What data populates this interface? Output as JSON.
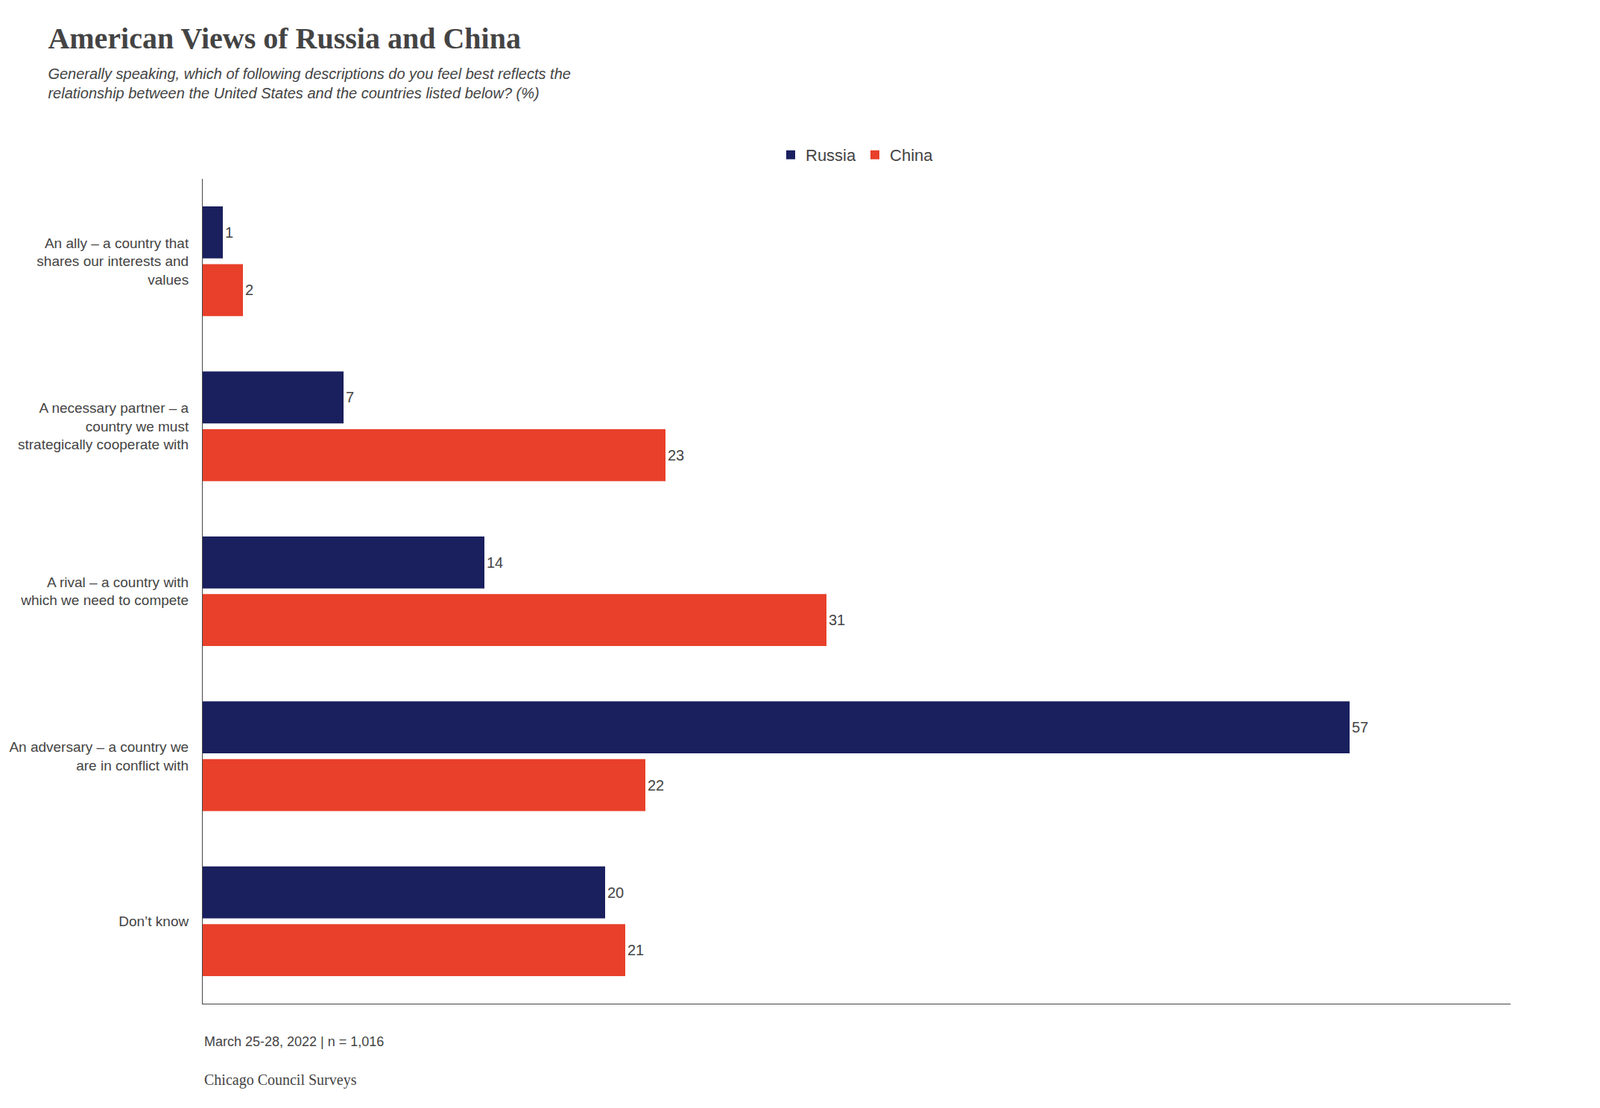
{
  "chart_data": {
    "type": "bar",
    "orientation": "horizontal",
    "title": "American Views of Russia and China",
    "subtitle": "Generally speaking, which of following descriptions do you feel best reflects the\nrelationship between the United States and the countries listed below? (%)",
    "annotations": [
      "March 25-28, 2022 | n = 1,016",
      "Chicago Council Surveys"
    ],
    "categories": [
      "An ally – a country that\nshares our interests and\nvalues",
      "A necessary partner – a\ncountry we must\nstrategically cooperate with",
      "A rival – a country with\nwhich we need to compete",
      "An adversary – a country we\nare in conflict with",
      "Don’t know"
    ],
    "series": [
      {
        "name": "Russia",
        "color": "#1a1f5e",
        "values": [
          1,
          7,
          14,
          57,
          20
        ]
      },
      {
        "name": "China",
        "color": "#e8402a",
        "values": [
          2,
          23,
          31,
          22,
          21
        ]
      }
    ],
    "xlim": [
      0,
      65
    ],
    "grid": false,
    "legend": "top",
    "data_labels": true,
    "tick_labels": "y"
  }
}
